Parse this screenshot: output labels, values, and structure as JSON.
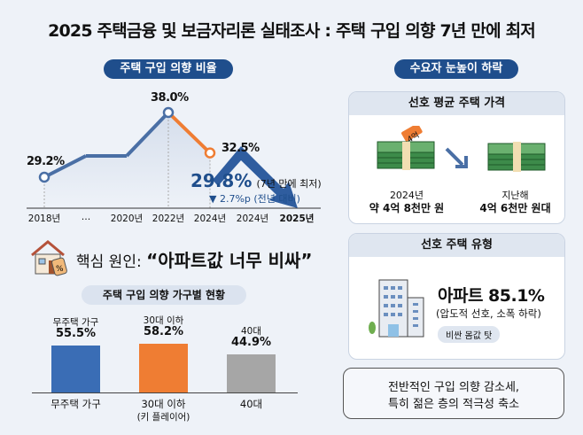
{
  "title": "2025 주택금융 및 보금자리론 실태조사 : 주택 구입 의향 7년 만에 최저",
  "colors": {
    "navy": "#1f4e8c",
    "line": "#4a6fa5",
    "orange": "#ef7d33",
    "gray": "#a6a6a6",
    "bar_blue": "#3a6db5"
  },
  "chart_data": [
    {
      "type": "line",
      "title": "주택 구입 의향 비율",
      "categories": [
        "2018년",
        "…",
        "2020년",
        "2022년",
        "2024년",
        "2024년",
        "2025년"
      ],
      "values": [
        29.2,
        32.1,
        32.1,
        38.0,
        32.5,
        null,
        29.8
      ],
      "data_labels": [
        "29.2%",
        "",
        "",
        "38.0%",
        "32.5%",
        "",
        ""
      ],
      "highlight": {
        "value": "29.8%",
        "note": "(7년 만에 최저)",
        "change": "▼ 2.7%p (전년 대비)"
      },
      "grid": false
    },
    {
      "type": "bar",
      "title": "주택 구입 의향 가구별 현황",
      "categories": [
        "무주택 가구",
        "30대 이하",
        "40대"
      ],
      "top_labels": [
        "무주택 가구",
        "30대 이하",
        "40대"
      ],
      "bottom_labels": [
        "무주택 가구",
        "30대 이하",
        "40대"
      ],
      "bottom_sublabels": [
        "",
        "(키 플레이어)",
        ""
      ],
      "values": [
        55.5,
        58.2,
        44.9
      ],
      "value_labels": [
        "55.5%",
        "58.2%",
        "44.9%"
      ],
      "bar_colors": [
        "#3a6db5",
        "#ef7d33",
        "#a6a6a6"
      ]
    }
  ],
  "cause": {
    "prefix": "핵심 원인:",
    "quote": "“아파트값 너무 비싸”",
    "icon": "house-price-tag-icon"
  },
  "right": {
    "pill": "수요자 눈높이 하락",
    "price": {
      "header": "선호 평균 주택 가격",
      "tag": "4억",
      "left_year": "2024년",
      "left_value": "약 4억 8천만 원",
      "right_year": "지난해",
      "right_value": "4억 6천만 원대"
    },
    "type": {
      "header": "선호 주택 유형",
      "main": "아파트 85.1%",
      "sub": "(압도적 선호, 소폭 하락)",
      "badge": "비싼 몸값 탓"
    },
    "summary": [
      "전반적인 구입 의향 감소세,",
      "특히 젊은 층의 적극성 축소"
    ]
  }
}
